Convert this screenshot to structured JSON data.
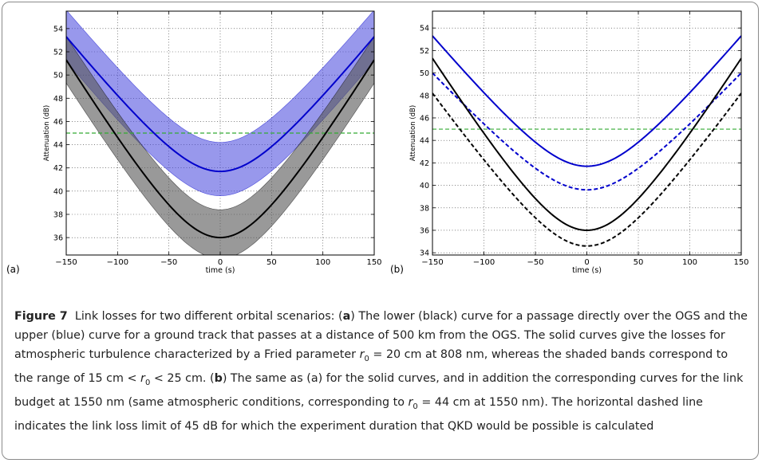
{
  "figure": {
    "label": "Figure 7",
    "caption_parts": {
      "p1": "Link losses for two different orbital scenarios: (",
      "a": "a",
      "p2": ") The lower (black) curve for a passage directly over the OGS and the upper (blue) curve for a ground track that passes at a distance of 500 km from the OGS. The solid curves give the losses for atmospheric turbulence characterized by a Fried parameter ",
      "r": "r",
      "sub0": "0",
      "p3": " = 20 cm at 808 nm, whereas the shaded bands correspond to the range of 15 cm < ",
      "p4": " < 25 cm. (",
      "b": "b",
      "p5": ") The same as (a) for the solid curves, and in addition the corresponding curves for the link budget at 1550 nm (same atmospheric conditions, corresponding to ",
      "p6": " = 44 cm at 1550 nm). The horizontal dashed line indicates the link loss limit of 45 dB for which the experiment duration that QKD would be possible is calculated"
    }
  },
  "chart_data": [
    {
      "type": "line",
      "panel_label": "(a)",
      "xlabel": "time (s)",
      "ylabel": "Attenuation (dB)",
      "xlim": [
        -150,
        150
      ],
      "ylim": [
        34.5,
        55.5
      ],
      "xticks": [
        -150,
        -100,
        -50,
        0,
        50,
        100,
        150
      ],
      "yticks": [
        36,
        38,
        40,
        42,
        44,
        46,
        48,
        50,
        52,
        54
      ],
      "grid": true,
      "threshold": {
        "y": 45,
        "color": "#33aa33",
        "style": "dashed"
      },
      "series": [
        {
          "color": "#0000cc",
          "style": "solid",
          "min": 41.7,
          "edge": 53.3,
          "band": {
            "min_low": 39.6,
            "min_high": 44.2,
            "edge_low": 51.2,
            "edge_high": 55.6,
            "fill": "#4444dd",
            "opacity": 0.55
          }
        },
        {
          "color": "#000000",
          "style": "solid",
          "min": 36.0,
          "edge": 51.3,
          "band": {
            "min_low": 34.2,
            "min_high": 38.4,
            "edge_low": 49.3,
            "edge_high": 53.3,
            "fill": "#555555",
            "opacity": 0.6
          }
        }
      ]
    },
    {
      "type": "line",
      "panel_label": "(b)",
      "xlabel": "time (s)",
      "ylabel": "Attenuation (dB)",
      "xlim": [
        -150,
        150
      ],
      "ylim": [
        33.8,
        55.5
      ],
      "xticks": [
        -150,
        -100,
        -50,
        0,
        50,
        100,
        150
      ],
      "yticks": [
        34,
        36,
        38,
        40,
        42,
        44,
        46,
        48,
        50,
        52,
        54
      ],
      "grid": true,
      "threshold": {
        "y": 45,
        "color": "#33aa33",
        "style": "dashed"
      },
      "series": [
        {
          "color": "#0000cc",
          "style": "solid",
          "min": 41.7,
          "edge": 53.3
        },
        {
          "color": "#0000cc",
          "style": "dashed",
          "min": 39.6,
          "edge": 50.0
        },
        {
          "color": "#000000",
          "style": "solid",
          "min": 36.0,
          "edge": 51.3
        },
        {
          "color": "#000000",
          "style": "dashed",
          "min": 34.6,
          "edge": 48.2
        }
      ]
    }
  ]
}
